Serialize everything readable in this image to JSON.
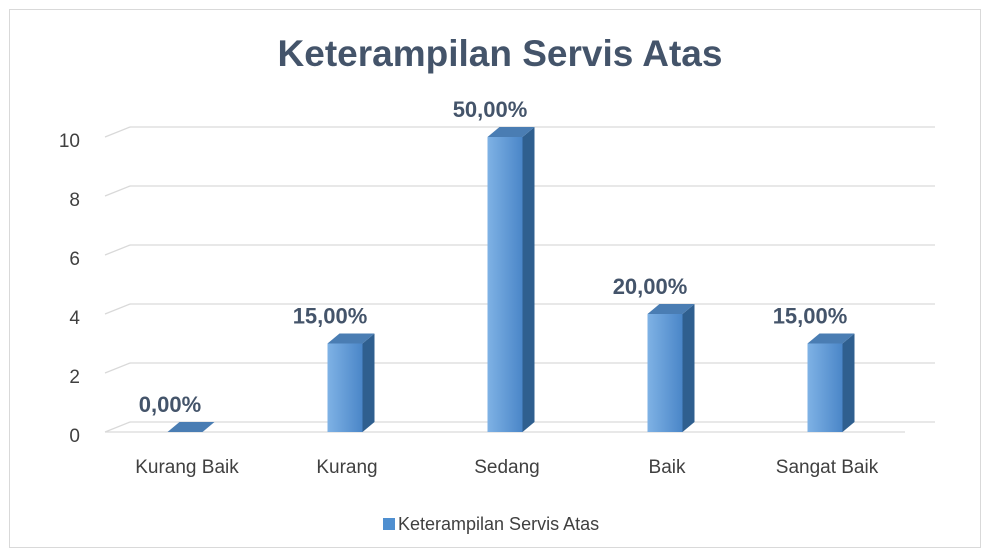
{
  "chart_data": {
    "type": "bar3d",
    "title": "Keterampilan Servis Atas",
    "categories": [
      "Kurang Baik",
      "Kurang",
      "Sedang",
      "Baik",
      "Sangat Baik"
    ],
    "series": [
      {
        "name": "Keterampilan Servis Atas",
        "color": "#4f8fd0",
        "values": [
          0,
          3,
          10,
          4,
          3
        ],
        "value_labels": [
          "0,00%",
          "15,00%",
          "50,00%",
          "20,00%",
          "15,00%"
        ]
      }
    ],
    "ylim": [
      0,
      10
    ],
    "yticks": [
      0,
      2,
      4,
      6,
      8,
      10
    ],
    "grid": true,
    "legend": "bottom"
  }
}
